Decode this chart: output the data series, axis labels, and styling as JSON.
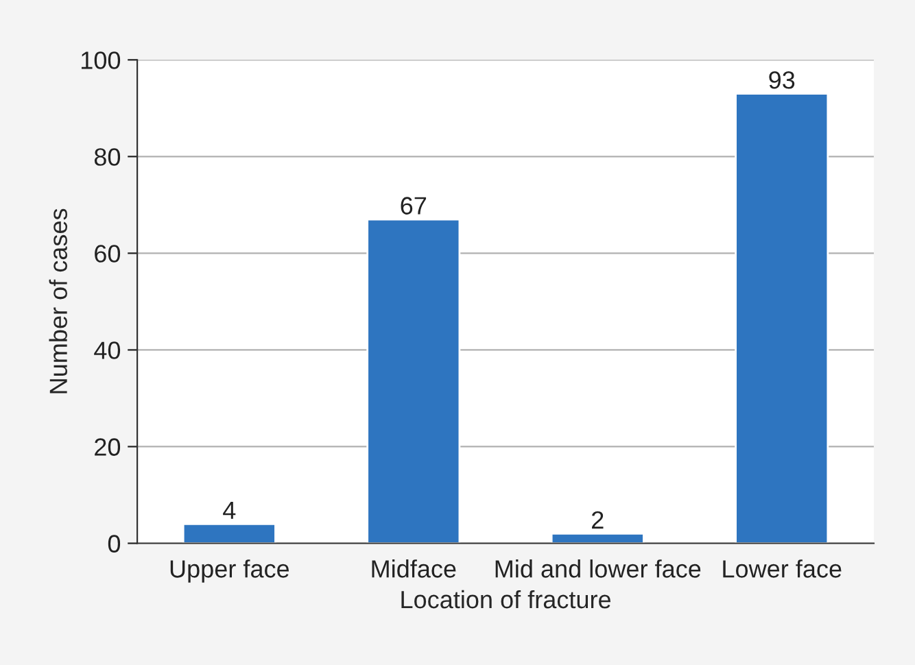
{
  "chart_data": {
    "type": "bar",
    "xlabel": "Location of fracture",
    "ylabel": "Number of cases",
    "categories": [
      "Upper face",
      "Midface",
      "Mid and lower face",
      "Lower face"
    ],
    "values": [
      4,
      67,
      2,
      93
    ],
    "color": "#2e75c0",
    "ylim": [
      0,
      100
    ],
    "yticks": [
      0,
      20,
      40,
      60,
      80,
      100
    ],
    "grid": "y",
    "data_labels": true
  }
}
